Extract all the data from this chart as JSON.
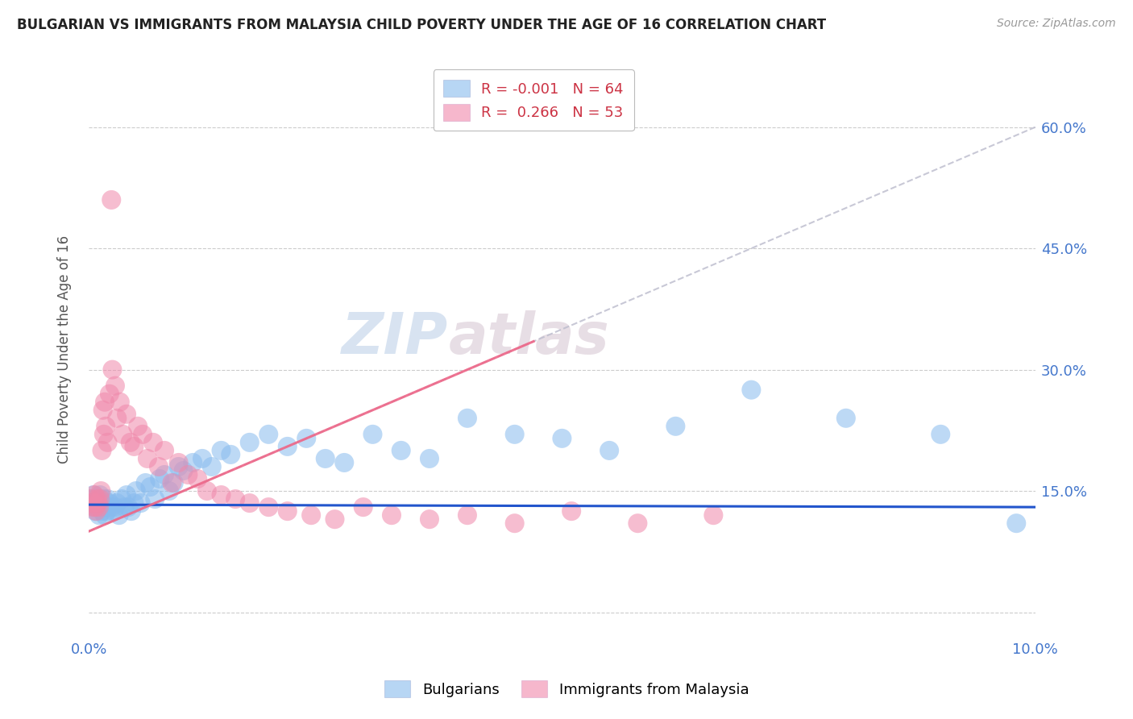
{
  "title": "BULGARIAN VS IMMIGRANTS FROM MALAYSIA CHILD POVERTY UNDER THE AGE OF 16 CORRELATION CHART",
  "source": "Source: ZipAtlas.com",
  "ylabel": "Child Poverty Under the Age of 16",
  "xlim": [
    0.0,
    10.0
  ],
  "ylim": [
    -3.0,
    68.0
  ],
  "yticks": [
    0.0,
    15.0,
    30.0,
    45.0,
    60.0
  ],
  "watermark": "ZIPatlas",
  "bg_color": "#ffffff",
  "grid_color": "#cccccc",
  "title_color": "#222222",
  "axis_label_color": "#4477cc",
  "blue_color": "#88bbee",
  "pink_color": "#f088aa",
  "blue_line_color": "#2255cc",
  "pink_line_color": "#ee6688",
  "gray_dash_color": "#bbbbcc",
  "bulgarians_x": [
    0.02,
    0.04,
    0.05,
    0.06,
    0.07,
    0.08,
    0.09,
    0.1,
    0.11,
    0.12,
    0.13,
    0.14,
    0.15,
    0.16,
    0.17,
    0.18,
    0.19,
    0.2,
    0.22,
    0.24,
    0.26,
    0.28,
    0.3,
    0.32,
    0.35,
    0.38,
    0.4,
    0.42,
    0.45,
    0.48,
    0.5,
    0.55,
    0.6,
    0.65,
    0.7,
    0.75,
    0.8,
    0.85,
    0.9,
    0.95,
    1.0,
    1.1,
    1.2,
    1.3,
    1.4,
    1.5,
    1.7,
    1.9,
    2.1,
    2.3,
    2.5,
    2.7,
    3.0,
    3.3,
    3.6,
    4.0,
    4.5,
    5.0,
    5.5,
    6.2,
    7.0,
    8.0,
    9.0,
    9.8
  ],
  "bulgarians_y": [
    14.0,
    13.5,
    14.5,
    13.0,
    12.5,
    13.5,
    14.0,
    13.0,
    12.0,
    14.5,
    13.5,
    12.5,
    13.0,
    14.0,
    12.0,
    13.0,
    12.5,
    14.0,
    13.5,
    13.0,
    12.5,
    13.0,
    13.5,
    12.0,
    14.0,
    13.0,
    14.5,
    13.0,
    12.5,
    13.5,
    15.0,
    13.5,
    16.0,
    15.5,
    14.0,
    16.5,
    17.0,
    15.0,
    16.0,
    18.0,
    17.5,
    18.5,
    19.0,
    18.0,
    20.0,
    19.5,
    21.0,
    22.0,
    20.5,
    21.5,
    19.0,
    18.5,
    22.0,
    20.0,
    19.0,
    24.0,
    22.0,
    21.5,
    20.0,
    23.0,
    27.5,
    24.0,
    22.0,
    11.0
  ],
  "malaysia_x": [
    0.02,
    0.04,
    0.05,
    0.06,
    0.07,
    0.08,
    0.09,
    0.1,
    0.11,
    0.12,
    0.13,
    0.14,
    0.15,
    0.16,
    0.17,
    0.18,
    0.2,
    0.22,
    0.25,
    0.28,
    0.3,
    0.33,
    0.36,
    0.4,
    0.44,
    0.48,
    0.52,
    0.57,
    0.62,
    0.68,
    0.74,
    0.8,
    0.88,
    0.95,
    1.05,
    1.15,
    1.25,
    1.4,
    1.55,
    1.7,
    1.9,
    2.1,
    2.35,
    2.6,
    2.9,
    3.2,
    3.6,
    4.0,
    4.5,
    5.1,
    5.8,
    6.6,
    0.24
  ],
  "malaysia_y": [
    14.0,
    13.5,
    13.0,
    14.5,
    13.0,
    12.5,
    14.0,
    13.5,
    13.0,
    14.0,
    15.0,
    20.0,
    25.0,
    22.0,
    26.0,
    23.0,
    21.0,
    27.0,
    30.0,
    28.0,
    24.0,
    26.0,
    22.0,
    24.5,
    21.0,
    20.5,
    23.0,
    22.0,
    19.0,
    21.0,
    18.0,
    20.0,
    16.0,
    18.5,
    17.0,
    16.5,
    15.0,
    14.5,
    14.0,
    13.5,
    13.0,
    12.5,
    12.0,
    11.5,
    13.0,
    12.0,
    11.5,
    12.0,
    11.0,
    12.5,
    11.0,
    12.0,
    51.0
  ]
}
